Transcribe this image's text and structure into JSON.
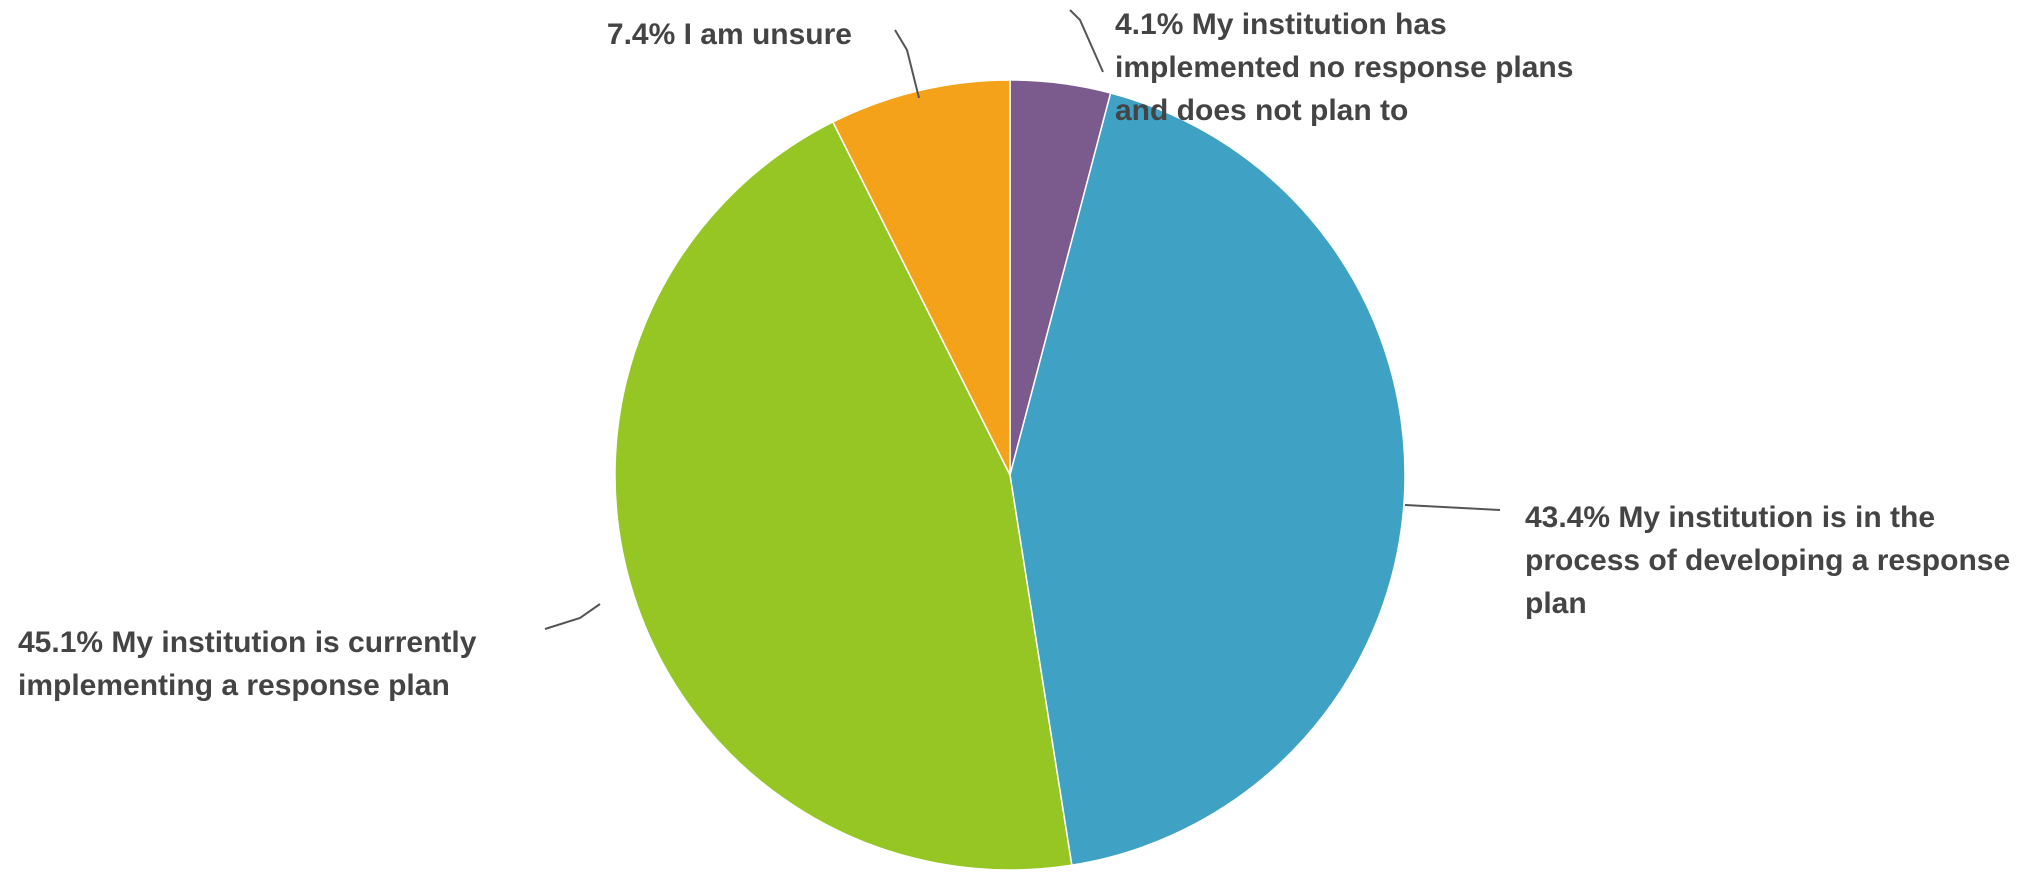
{
  "chart_data": {
    "type": "pie",
    "start": "12 o'clock",
    "direction": "clockwise",
    "slices": [
      {
        "value": 4.1,
        "label_lines": [
          "4.1% My institution has",
          "implemented no response plans",
          "and does not plan to"
        ],
        "color": "#7b5b8e"
      },
      {
        "value": 43.4,
        "label_lines": [
          "43.4% My institution is in the",
          "process of developing a response",
          "plan"
        ],
        "color": "#3fa1c3"
      },
      {
        "value": 45.1,
        "label_lines": [
          "45.1% My institution is currently",
          "implementing a response plan"
        ],
        "color": "#95c623"
      },
      {
        "value": 7.4,
        "label_lines": [
          "7.4% I am unsure"
        ],
        "color": "#f5a21b"
      }
    ]
  }
}
